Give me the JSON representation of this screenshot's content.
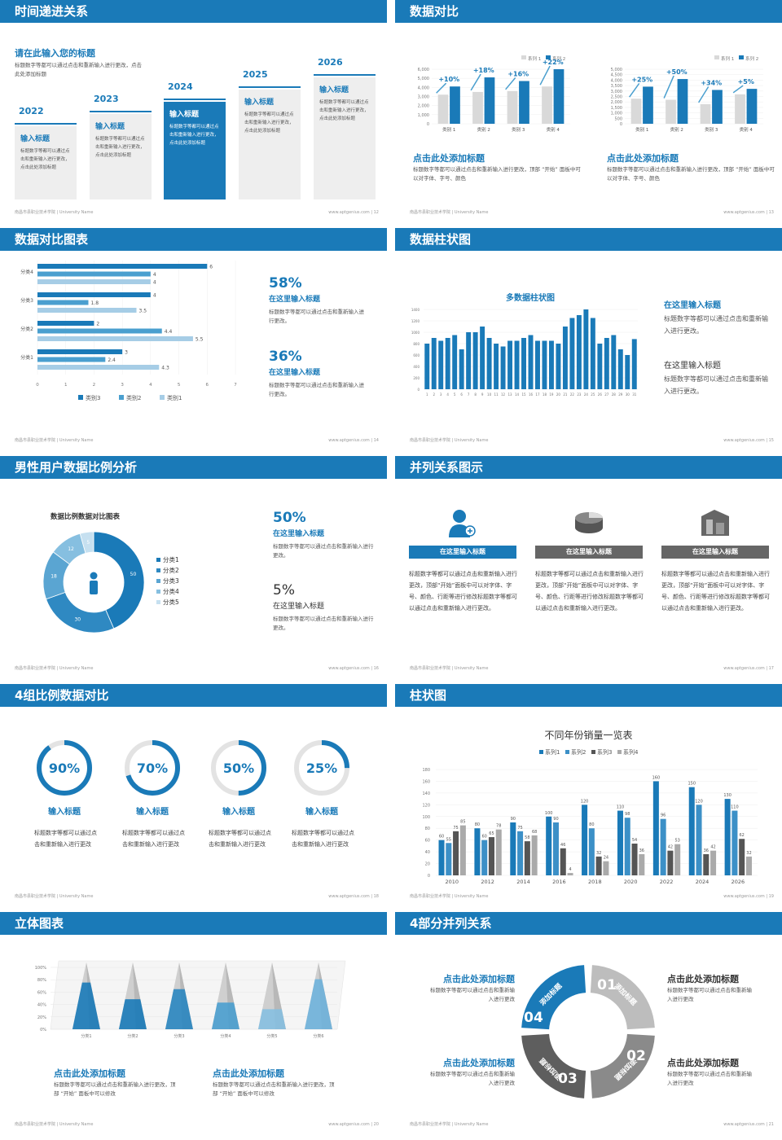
{
  "colors": {
    "blue": "#1a7ab8",
    "mid": "#4a9fcf",
    "light": "#a6cde6",
    "grey": "#d9d9d9",
    "dark": "#555555"
  },
  "footer": {
    "left": "南昌市县职业技术学院 | University Name",
    "url": "www.aptgenius.com"
  },
  "slides": [
    {
      "title": "时间递进关系",
      "page": "12",
      "intro": {
        "title": "请在此输入您的标题",
        "text": "标题数字等都可以通过点击和重新输入进行更改，点击此处添加标题"
      },
      "steps": [
        {
          "year": "2022",
          "title": "输入标题",
          "text": "标题数字等都可以通过点击和重新输入进行更改，点击此处添加标题"
        },
        {
          "year": "2023",
          "title": "输入标题",
          "text": "标题数字等都可以通过点击和重新输入进行更改，点击此处添加标题"
        },
        {
          "year": "2024",
          "title": "输入标题",
          "text": "标题数字等都可以通过点击和重新输入进行更改，点击此处添加标题"
        },
        {
          "year": "2025",
          "title": "输入标题",
          "text": "标题数字等都可以通过点击和重新输入进行更改，点击此处添加标题"
        },
        {
          "year": "2026",
          "title": "输入标题",
          "text": "标题数字等都可以通过点击和重新输入进行更改，点击此处添加标题"
        }
      ]
    },
    {
      "title": "数据对比",
      "page": "13",
      "charts": [
        {
          "legend": [
            "系列 1",
            "系列 2"
          ],
          "yticks": [
            "0",
            "1,000",
            "2,000",
            "3,000",
            "4,000",
            "5,000",
            "6,000"
          ],
          "ymax": 6000,
          "categories": [
            "类别 1",
            "类别 2",
            "类别 3",
            "类别 4"
          ],
          "s1": [
            3200,
            3500,
            3600,
            4100
          ],
          "s2": [
            4100,
            5100,
            4700,
            6000
          ],
          "labels": [
            "+10%",
            "+18%",
            "+16%",
            "+22%"
          ],
          "title": "点击此处添加标题",
          "text": "标题数字等都可以通过点击和重新输入进行更改，顶部 “开始” 面板中可以对字体、字号、颜色"
        },
        {
          "legend": [
            "系列 1",
            "系列 2"
          ],
          "yticks": [
            "0",
            "500",
            "1,000",
            "1,500",
            "2,000",
            "2,500",
            "3,000",
            "3,500",
            "4,000",
            "4,500",
            "5,000"
          ],
          "ymax": 5000,
          "categories": [
            "类别 1",
            "类别 2",
            "类别 3",
            "类别 4"
          ],
          "s1": [
            2300,
            2200,
            1800,
            2700
          ],
          "s2": [
            3400,
            4100,
            3100,
            3200
          ],
          "labels": [
            "+25%",
            "+50%",
            "+34%",
            "+5%"
          ],
          "title": "点击此处添加标题",
          "text": "标题数字等都可以通过点击和重新输入进行更改，顶部 “开始” 面板中可以对字体、字号、颜色"
        }
      ]
    },
    {
      "title": "数据对比图表",
      "page": "14",
      "chart": {
        "categories": [
          "分类1",
          "分类2",
          "分类3",
          "分类4"
        ],
        "series": [
          {
            "name": "类别3",
            "values": [
              3,
              2,
              4,
              6
            ]
          },
          {
            "name": "类别2",
            "values": [
              2.4,
              4.4,
              1.8,
              4
            ]
          },
          {
            "name": "类别1",
            "values": [
              4.3,
              5.5,
              3.5,
              4
            ]
          }
        ],
        "xticks": [
          "0",
          "1",
          "2",
          "3",
          "4",
          "5",
          "6",
          "7"
        ],
        "xmax": 7
      },
      "stats": [
        {
          "value": "58%",
          "title": "在这里输入标题",
          "text": "标题数字等都可以通过点击和重新输入进行更改。"
        },
        {
          "value": "36%",
          "title": "在这里输入标题",
          "text": "标题数字等都可以通过点击和重新输入进行更改。"
        }
      ]
    },
    {
      "title": "数据柱状图",
      "page": "15",
      "chart": {
        "title": "多数据柱状图",
        "ymax": 1400,
        "yticks": [
          "0",
          "200",
          "400",
          "600",
          "800",
          "1000",
          "1200",
          "1400"
        ],
        "values": [
          800,
          900,
          850,
          900,
          950,
          700,
          1000,
          1000,
          1100,
          900,
          800,
          750,
          850,
          850,
          900,
          950,
          850,
          850,
          850,
          800,
          1100,
          1250,
          1300,
          1450,
          1250,
          800,
          900,
          950,
          700,
          600,
          880
        ]
      },
      "texts": [
        {
          "title": "在这里输入标题",
          "text": "标题数字等都可以通过点击和重新输入进行更改。"
        },
        {
          "title": "在这里输入标题",
          "text": "标题数字等都可以通过点击和重新输入进行更改。"
        }
      ]
    },
    {
      "title": "男性用户数据比例分析",
      "page": "16",
      "chart": {
        "title": "数据比例数据对比图表",
        "values": [
          50,
          30,
          18,
          12,
          5
        ],
        "labels": [
          "50",
          "30",
          "18",
          "12",
          "5"
        ],
        "legend": [
          "分类1",
          "分类2",
          "分类3",
          "分类4",
          "分类5"
        ]
      },
      "stats": [
        {
          "value": "50%",
          "title": "在这里输入标题",
          "text": "标题数字等都可以通过点击和重新输入进行更改。"
        },
        {
          "value": "5%",
          "title": "在这里输入标题",
          "text": "标题数字等都可以通过点击和重新输入进行更改。"
        }
      ]
    },
    {
      "title": "并列关系图示",
      "page": "17",
      "items": [
        {
          "label": "在这里输入标题",
          "icon": "user-icon",
          "text": "标题数字等都可以通过点击和重新输入进行更改，顶部“开始”面板中可以对字体、字号、颜色、行距等进行修改标题数字等都可以通过点击和重新输入进行更改。"
        },
        {
          "label": "在这里输入标题",
          "icon": "pie-icon",
          "text": "标题数字等都可以通过点击和重新输入进行更改，顶部“开始”面板中可以对字体、字号、颜色、行距等进行修改标题数字等都可以通过点击和重新输入进行更改。"
        },
        {
          "label": "在这里输入标题",
          "icon": "building-icon",
          "text": "标题数字等都可以通过点击和重新输入进行更改，顶部“开始”面板中可以对字体、字号、颜色、行距等进行修改标题数字等都可以通过点击和重新输入进行更改。"
        }
      ]
    },
    {
      "title": "4组比例数据对比",
      "page": "18",
      "rings": [
        {
          "value": "90%",
          "pct": 0.9,
          "title": "输入标题",
          "text": "标题数字等都可以通过点击和重新输入进行更改"
        },
        {
          "value": "70%",
          "pct": 0.7,
          "title": "输入标题",
          "text": "标题数字等都可以通过点击和重新输入进行更改"
        },
        {
          "value": "50%",
          "pct": 0.5,
          "title": "输入标题",
          "text": "标题数字等都可以通过点击和重新输入进行更改"
        },
        {
          "value": "25%",
          "pct": 0.25,
          "title": "输入标题",
          "text": "标题数字等都可以通过点击和重新输入进行更改"
        }
      ]
    },
    {
      "title": "柱状图",
      "page": "19",
      "chart": {
        "title": "不同年份销量一览表",
        "legend": [
          "系列1",
          "系列2",
          "系列3",
          "系列4"
        ],
        "categories": [
          "2010",
          "2012",
          "2014",
          "2016",
          "2018",
          "2020",
          "2022",
          "2024",
          "2026"
        ],
        "yticks": [
          "0",
          "20",
          "40",
          "60",
          "80",
          "100",
          "120",
          "140",
          "160",
          "180"
        ],
        "ymax": 180,
        "series": [
          [
            60,
            80,
            90,
            100,
            120,
            110,
            160,
            150,
            130
          ],
          [
            55,
            60,
            75,
            90,
            80,
            98,
            96,
            120,
            110
          ],
          [
            75,
            65,
            58,
            46,
            32,
            54,
            42,
            36,
            62
          ],
          [
            85,
            78,
            68,
            4,
            24,
            36,
            53,
            42,
            32
          ]
        ]
      }
    },
    {
      "title": "立体图表",
      "page": "20",
      "chart": {
        "categories": [
          "分类1",
          "分类2",
          "分类3",
          "分类4",
          "分类5",
          "分类6"
        ],
        "yticks": [
          "0%",
          "20%",
          "40%",
          "60%",
          "80%",
          "100%"
        ],
        "fill": [
          0.7,
          0.45,
          0.6,
          0.4,
          0.3,
          0.75
        ]
      },
      "texts": [
        {
          "title": "点击此处添加标题",
          "text": "标题数字等都可以通过点击和重新输入进行更改，顶部 “开始” 面板中可以修改"
        },
        {
          "title": "点击此处添加标题",
          "text": "标题数字等都可以通过点击和重新输入进行更改，顶部 “开始” 面板中可以修改"
        }
      ]
    },
    {
      "title": "4部分并列关系",
      "page": "21",
      "ring": {
        "nums": [
          "01",
          "02",
          "03",
          "04"
        ],
        "labels": [
          "添加标题",
          "添加标题",
          "添加标题",
          "添加标题"
        ]
      },
      "texts": [
        {
          "title": "点击此处添加标题",
          "text": "标题数字等都可以通过点击和重新输入进行更改"
        },
        {
          "title": "点击此处添加标题",
          "text": "标题数字等都可以通过点击和重新输入进行更改"
        },
        {
          "title": "点击此处添加标题",
          "text": "标题数字等都可以通过点击和重新输入进行更改"
        },
        {
          "title": "点击此处添加标题",
          "text": "标题数字等都可以通过点击和重新输入进行更改"
        }
      ]
    }
  ]
}
